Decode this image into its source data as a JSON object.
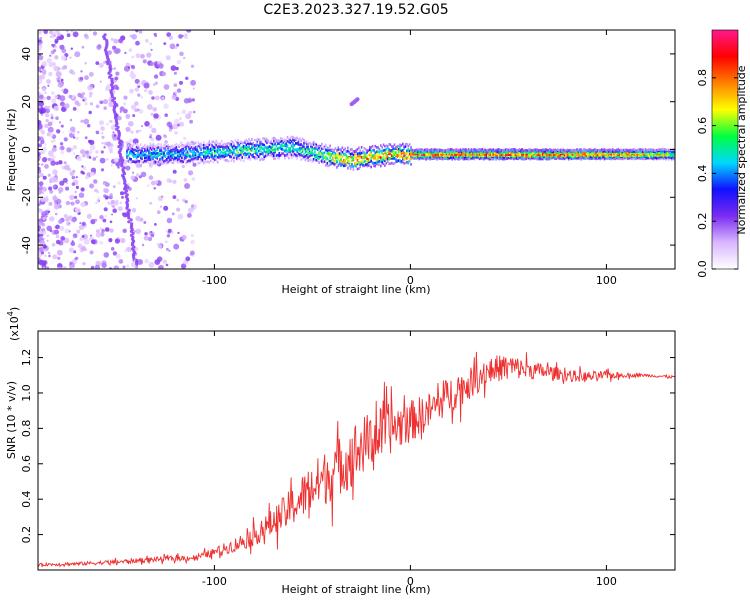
{
  "title": "C2E3.2023.327.19.52.G05",
  "colors": {
    "snr_line": "#ef3030",
    "axis": "#000000",
    "background": "#ffffff",
    "colormap": [
      "#ffffff",
      "#d9b6ff",
      "#7a2cf0",
      "#1010ff",
      "#00d8ff",
      "#00ff40",
      "#ffff00",
      "#ff8000",
      "#ff0000",
      "#ff1a8c"
    ]
  },
  "chart_data": [
    {
      "type": "heatmap",
      "xlabel": "Height of straight line (km)",
      "ylabel": "Frequency (Hz)",
      "xlim": [
        -190,
        135
      ],
      "ylim": [
        -50,
        50
      ],
      "x_ticks": [
        -100,
        0,
        100
      ],
      "y_ticks": [
        -40,
        -20,
        0,
        20,
        40
      ],
      "colorbar": {
        "label": "Normalized spectral amplitude",
        "range": [
          0,
          1
        ],
        "ticks": [
          "0.0",
          "0.2",
          "0.4",
          "0.6",
          "0.8"
        ]
      },
      "ridge": {
        "x": [
          -140,
          -120,
          -100,
          -80,
          -60,
          -50,
          -40,
          -30,
          -20,
          -10,
          0,
          10,
          50,
          100,
          135
        ],
        "freq": [
          -2,
          -2,
          -1,
          0,
          1,
          -1,
          -3,
          -4,
          -3,
          -2,
          -2,
          -2,
          -2,
          -2,
          -2
        ],
        "peak_amplitude": [
          0.5,
          0.5,
          0.55,
          0.6,
          0.55,
          0.6,
          0.75,
          0.85,
          0.85,
          0.85,
          0.9,
          0.9,
          0.9,
          0.9,
          0.7
        ]
      }
    },
    {
      "type": "line",
      "xlabel": "Height of straight line (km)",
      "ylabel": "SNR (10 * v/v)",
      "y_multiplier": "(x10",
      "y_multiplier_exp": "4",
      "y_multiplier_close": ")",
      "xlim": [
        -190,
        135
      ],
      "ylim": [
        0,
        13500
      ],
      "x_ticks": [
        -100,
        0,
        100
      ],
      "y_ticks": [
        2000,
        4000,
        6000,
        8000,
        10000,
        12000
      ],
      "y_tick_labels": [
        "0.2",
        "0.4",
        "0.6",
        "0.8",
        "1.0",
        "1.2"
      ],
      "series": [
        {
          "x": [
            -190,
            -170,
            -150,
            -130,
            -110,
            -100,
            -90,
            -80,
            -70,
            -60,
            -50,
            -40,
            -30,
            -20,
            -10,
            0,
            10,
            20,
            30,
            40,
            50,
            60,
            70,
            80,
            90,
            100,
            110,
            120,
            135
          ],
          "y": [
            300,
            350,
            450,
            600,
            700,
            1000,
            1400,
            1900,
            2700,
            3600,
            4700,
            5500,
            6500,
            7400,
            8000,
            8400,
            9000,
            9900,
            10500,
            11300,
            11500,
            11300,
            11200,
            11000,
            10900,
            11000,
            11000,
            11000,
            10900
          ],
          "noise_amplitude": [
            100,
            120,
            150,
            180,
            200,
            300,
            500,
            700,
            1000,
            1400,
            1800,
            2000,
            2200,
            2000,
            1800,
            1500,
            1300,
            1300,
            1100,
            1000,
            900,
            700,
            500,
            400,
            400,
            300,
            150,
            100,
            100
          ]
        }
      ]
    }
  ]
}
